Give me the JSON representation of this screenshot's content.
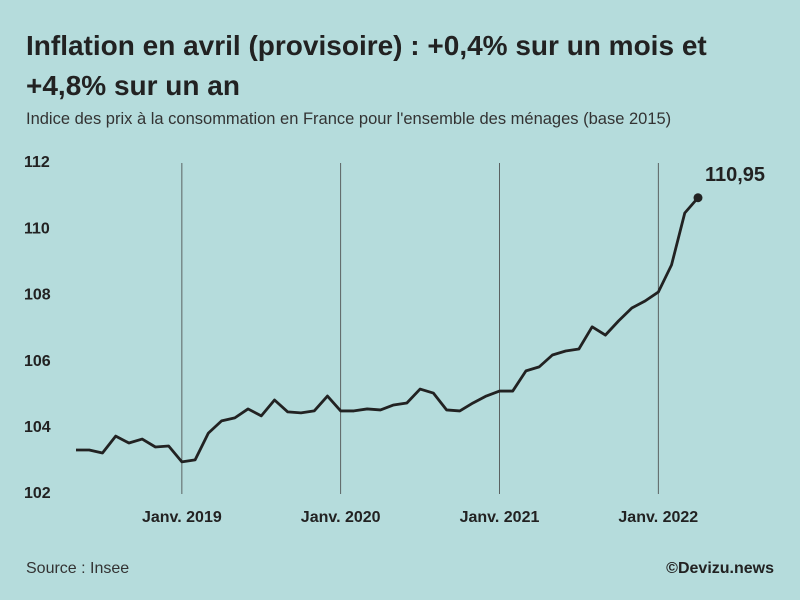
{
  "chart_data": {
    "type": "line",
    "title": "Inflation en avril (provisoire) : +0,4% sur un mois et +4,8% sur un an",
    "subtitle": "Indice des prix à la consommation en France pour l'ensemble des ménages (base 2015)",
    "source": "Source : Insee",
    "credit": "©Devizu.news",
    "categories": [
      null,
      null,
      null,
      null,
      null,
      null,
      null,
      null,
      "Janv. 2019",
      null,
      null,
      null,
      null,
      null,
      null,
      null,
      null,
      null,
      null,
      null,
      "Janv. 2020",
      null,
      null,
      null,
      null,
      null,
      null,
      null,
      null,
      null,
      null,
      null,
      "Janv. 2021",
      null,
      null,
      null,
      null,
      null,
      null,
      null,
      null,
      null,
      null,
      null,
      "Janv. 2022",
      null,
      null,
      null
    ],
    "values": [
      103.33,
      103.33,
      103.24,
      103.75,
      103.54,
      103.66,
      103.42,
      103.45,
      102.97,
      103.03,
      103.84,
      104.21,
      104.3,
      104.57,
      104.36,
      104.84,
      104.48,
      104.45,
      104.51,
      104.96,
      104.51,
      104.51,
      104.57,
      104.54,
      104.69,
      104.75,
      105.17,
      105.05,
      104.54,
      104.51,
      104.75,
      104.96,
      105.11,
      105.11,
      105.72,
      105.84,
      106.2,
      106.32,
      106.38,
      107.05,
      106.8,
      107.23,
      107.62,
      107.83,
      108.1,
      108.92,
      110.49,
      110.95
    ],
    "value_labels": [
      null,
      null,
      null,
      null,
      null,
      null,
      null,
      null,
      null,
      null,
      null,
      null,
      null,
      null,
      null,
      null,
      null,
      null,
      null,
      null,
      null,
      null,
      null,
      null,
      null,
      null,
      null,
      null,
      null,
      null,
      null,
      null,
      null,
      null,
      null,
      null,
      null,
      null,
      null,
      null,
      null,
      null,
      null,
      null,
      null,
      null,
      null,
      "110,95"
    ],
    "color": "#222222",
    "ylim": [
      102,
      112
    ],
    "yticks": [
      102,
      104,
      106,
      108,
      110,
      112
    ],
    "grid": false
  }
}
